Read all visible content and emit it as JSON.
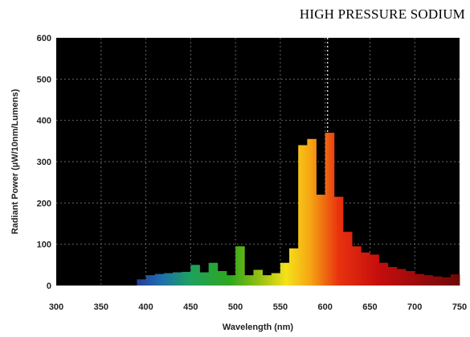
{
  "chart_data": {
    "type": "bar",
    "title": "HIGH PRESSURE SODIUM",
    "xlabel": "Wavelength (nm)",
    "ylabel": "Radiant Power (µW/10nm/Lumens)",
    "xlim": [
      300,
      750
    ],
    "ylim": [
      0,
      600
    ],
    "xticks": [
      300,
      350,
      400,
      450,
      500,
      550,
      600,
      650,
      700,
      750
    ],
    "yticks": [
      0,
      100,
      200,
      300,
      400,
      500,
      600
    ],
    "grid": true,
    "background": "#000000",
    "bin_width_nm": 10,
    "reference_line_x": 600,
    "bins": [
      {
        "x": 390,
        "y": 15
      },
      {
        "x": 400,
        "y": 25
      },
      {
        "x": 410,
        "y": 28
      },
      {
        "x": 420,
        "y": 30
      },
      {
        "x": 430,
        "y": 32
      },
      {
        "x": 440,
        "y": 33
      },
      {
        "x": 450,
        "y": 50
      },
      {
        "x": 460,
        "y": 32
      },
      {
        "x": 470,
        "y": 55
      },
      {
        "x": 480,
        "y": 35
      },
      {
        "x": 490,
        "y": 25
      },
      {
        "x": 500,
        "y": 95
      },
      {
        "x": 510,
        "y": 25
      },
      {
        "x": 520,
        "y": 38
      },
      {
        "x": 530,
        "y": 25
      },
      {
        "x": 540,
        "y": 30
      },
      {
        "x": 550,
        "y": 55
      },
      {
        "x": 560,
        "y": 90
      },
      {
        "x": 570,
        "y": 340
      },
      {
        "x": 580,
        "y": 355
      },
      {
        "x": 590,
        "y": 220
      },
      {
        "x": 600,
        "y": 370
      },
      {
        "x": 610,
        "y": 215
      },
      {
        "x": 620,
        "y": 130
      },
      {
        "x": 630,
        "y": 95
      },
      {
        "x": 640,
        "y": 80
      },
      {
        "x": 650,
        "y": 75
      },
      {
        "x": 660,
        "y": 55
      },
      {
        "x": 670,
        "y": 45
      },
      {
        "x": 680,
        "y": 40
      },
      {
        "x": 690,
        "y": 35
      },
      {
        "x": 700,
        "y": 28
      },
      {
        "x": 710,
        "y": 25
      },
      {
        "x": 720,
        "y": 22
      },
      {
        "x": 730,
        "y": 20
      },
      {
        "x": 740,
        "y": 27
      }
    ]
  }
}
